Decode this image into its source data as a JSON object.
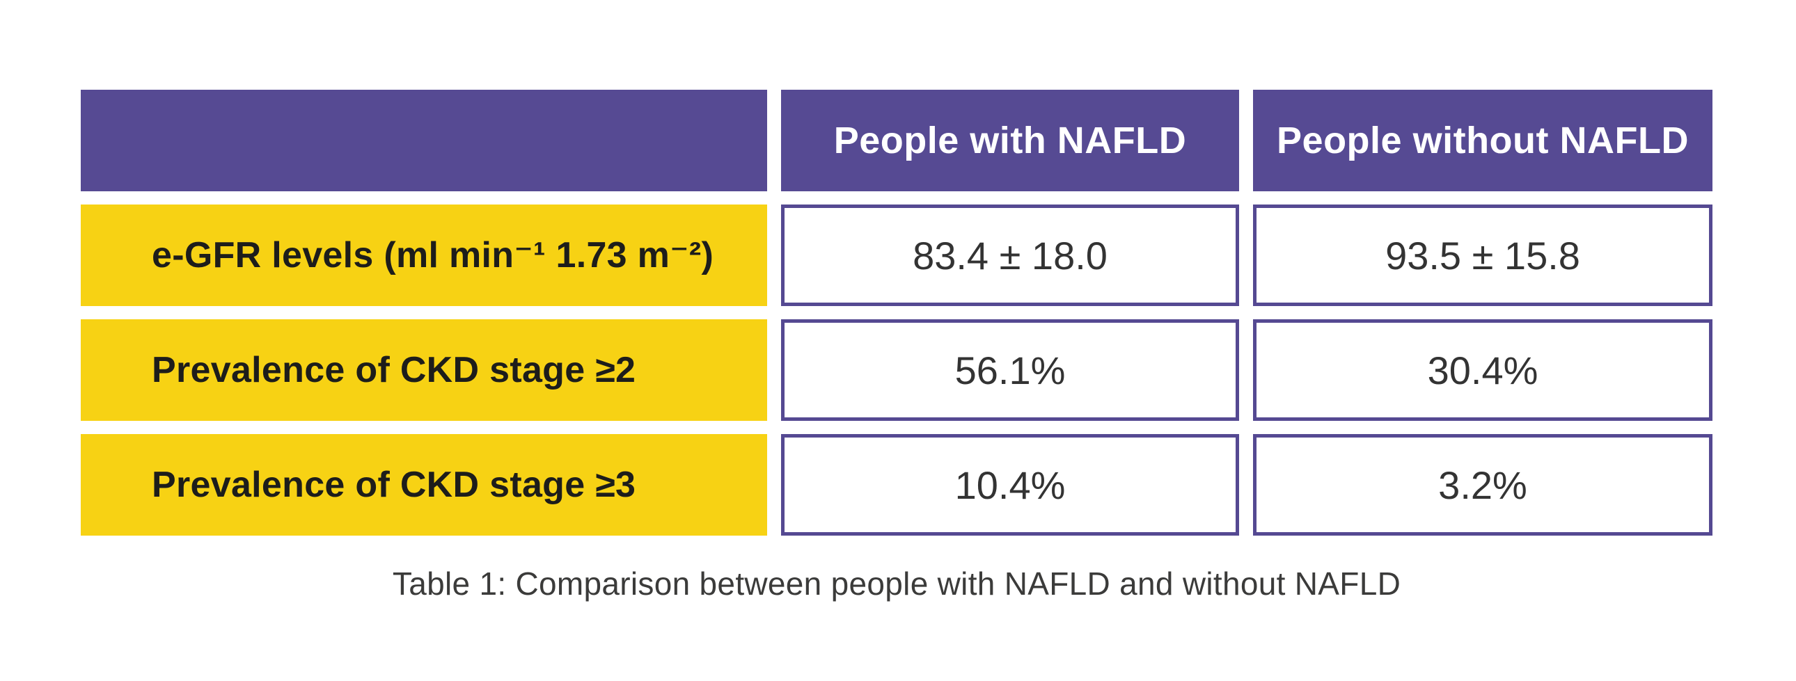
{
  "table": {
    "caption": "Table 1: Comparison between people with NAFLD and without NAFLD",
    "columns": [
      "",
      "People with NAFLD",
      "People without NAFLD"
    ],
    "rows": [
      {
        "label": "e-GFR levels (ml min⁻¹ 1.73 m⁻²)",
        "with_nafld": "83.4 ± 18.0",
        "without_nafld": "93.5 ± 15.8"
      },
      {
        "label": "Prevalence of CKD stage ≥2",
        "with_nafld": "56.1%",
        "without_nafld": "30.4%"
      },
      {
        "label": "Prevalence of CKD stage ≥3",
        "with_nafld": "10.4%",
        "without_nafld": "3.2%"
      }
    ]
  },
  "colors": {
    "header_background": "#564a93",
    "header_text": "#ffffff",
    "row_label_background": "#f7d214",
    "row_label_text": "#1d1d1b",
    "value_cell_border": "#554992",
    "value_text": "#333333",
    "caption_text": "#3b3b3a",
    "page_background": "#ffffff"
  },
  "chart_data": {
    "type": "table",
    "title": "Table 1: Comparison between people with NAFLD and without NAFLD",
    "columns": [
      "",
      "People with NAFLD",
      "People without NAFLD"
    ],
    "rows": [
      [
        "e-GFR levels (ml min⁻¹ 1.73 m⁻²)",
        "83.4 ± 18.0",
        "93.5 ± 15.8"
      ],
      [
        "Prevalence of CKD stage ≥2",
        "56.1%",
        "30.4%"
      ],
      [
        "Prevalence of CKD stage ≥3",
        "10.4%",
        "3.2%"
      ]
    ],
    "notes_numeric": {
      "egfr_with_nafld_mean": 83.4,
      "egfr_with_nafld_sd": 18.0,
      "egfr_without_nafld_mean": 93.5,
      "egfr_without_nafld_sd": 15.8,
      "ckd_stage_ge2_with_nafld_pct": 56.1,
      "ckd_stage_ge2_without_nafld_pct": 30.4,
      "ckd_stage_ge3_with_nafld_pct": 10.4,
      "ckd_stage_ge3_without_nafld_pct": 3.2
    }
  }
}
